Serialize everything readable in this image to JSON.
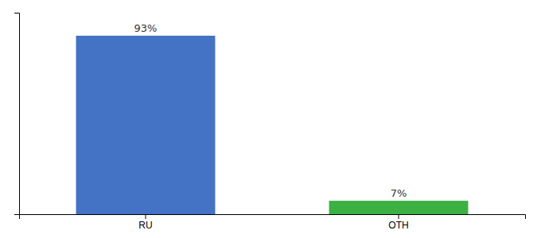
{
  "chart_data": {
    "type": "bar",
    "categories": [
      "RU",
      "OTH"
    ],
    "values": [
      93,
      7
    ],
    "value_labels": [
      "93%",
      "7%"
    ],
    "colors": [
      "#4472c4",
      "#3cb043"
    ],
    "ylim": [
      0,
      105
    ],
    "data_labels": true,
    "tick_labels": "x"
  }
}
